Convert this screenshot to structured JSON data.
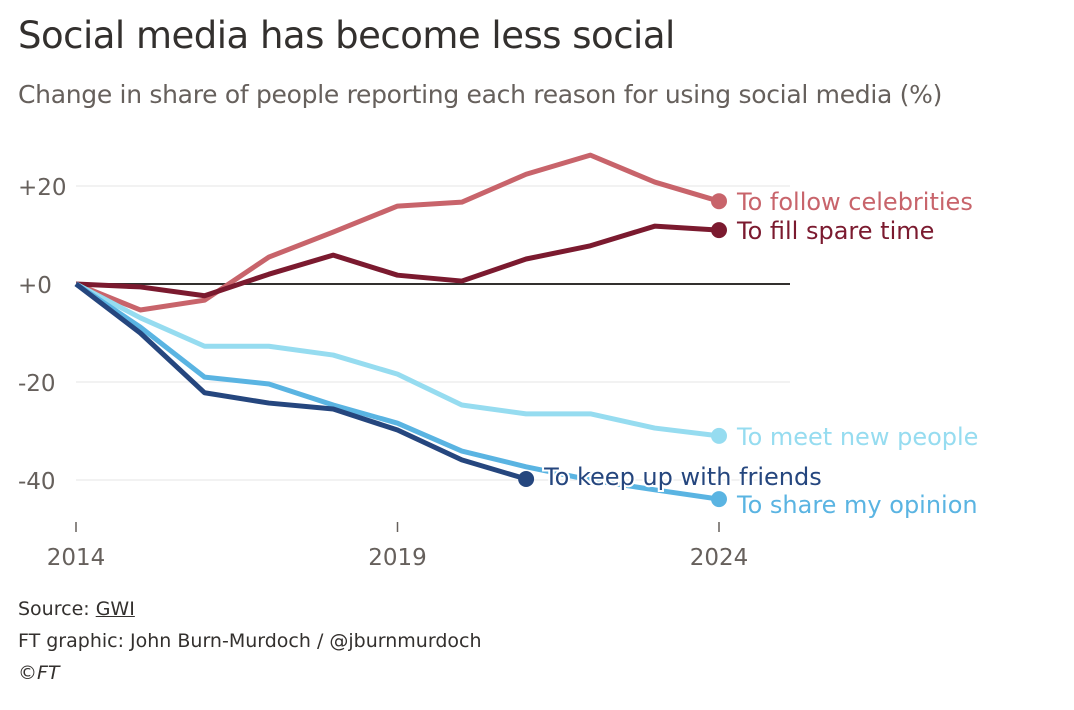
{
  "chart_data": {
    "type": "line",
    "title": "Social media has become less social",
    "subtitle": "Change in share of people reporting each reason for using social media (%)",
    "xlabel": "",
    "ylabel": "",
    "xlim": [
      2014,
      2025
    ],
    "ylim": [
      -50,
      30
    ],
    "x_ticks": [
      2014,
      2019,
      2024
    ],
    "x_tick_labels": [
      "2014",
      "2019",
      "2024"
    ],
    "y_ticks": [
      20,
      0,
      -20,
      -40
    ],
    "y_tick_labels": [
      "+20",
      "+0",
      "-20",
      "-40"
    ],
    "grid": true,
    "legend": "direct labels at line ends",
    "series": [
      {
        "name": "To follow celebrities",
        "color": "#c8646b",
        "x": [
          2014,
          2015,
          2016,
          2017,
          2018,
          2019,
          2020,
          2021,
          2022,
          2023,
          2024
        ],
        "values": [
          0,
          -5.3,
          -3.3,
          5.5,
          10.6,
          15.9,
          16.7,
          22.4,
          26.3,
          20.8,
          16.9
        ]
      },
      {
        "name": "To fill spare time",
        "color": "#7b1a2f",
        "x": [
          2014,
          2015,
          2016,
          2017,
          2018,
          2019,
          2020,
          2021,
          2022,
          2023,
          2024
        ],
        "values": [
          0,
          -0.6,
          -2.4,
          2,
          5.9,
          1.8,
          0.6,
          5.1,
          7.8,
          11.8,
          11
        ]
      },
      {
        "name": "To meet new people",
        "color": "#96dcf0",
        "x": [
          2014,
          2015,
          2016,
          2017,
          2018,
          2019,
          2020,
          2021,
          2022,
          2023,
          2024
        ],
        "values": [
          0,
          -6.9,
          -12.7,
          -12.7,
          -14.5,
          -18.4,
          -24.7,
          -26.5,
          -26.5,
          -29.4,
          -31
        ]
      },
      {
        "name": "To share my opinion",
        "color": "#5ab4e2",
        "x": [
          2014,
          2015,
          2016,
          2017,
          2018,
          2019,
          2020,
          2021,
          2022,
          2023,
          2024
        ],
        "values": [
          0,
          -8.8,
          -19,
          -20.4,
          -24.7,
          -28.4,
          -34.1,
          -37.3,
          -40,
          -42,
          -43.9
        ]
      },
      {
        "name": "To keep up with friends",
        "color": "#25467e",
        "x": [
          2014,
          2015,
          2016,
          2017,
          2018,
          2019,
          2020,
          2021
        ],
        "values": [
          0,
          -10,
          -22.2,
          -24.3,
          -25.5,
          -29.8,
          -35.9,
          -39.8
        ]
      }
    ]
  },
  "footer": {
    "source_prefix": "Source: ",
    "source_link": "GWI",
    "credit": "FT graphic: John Burn-Murdoch / @jburnmurdoch",
    "copyright": "©FT"
  }
}
